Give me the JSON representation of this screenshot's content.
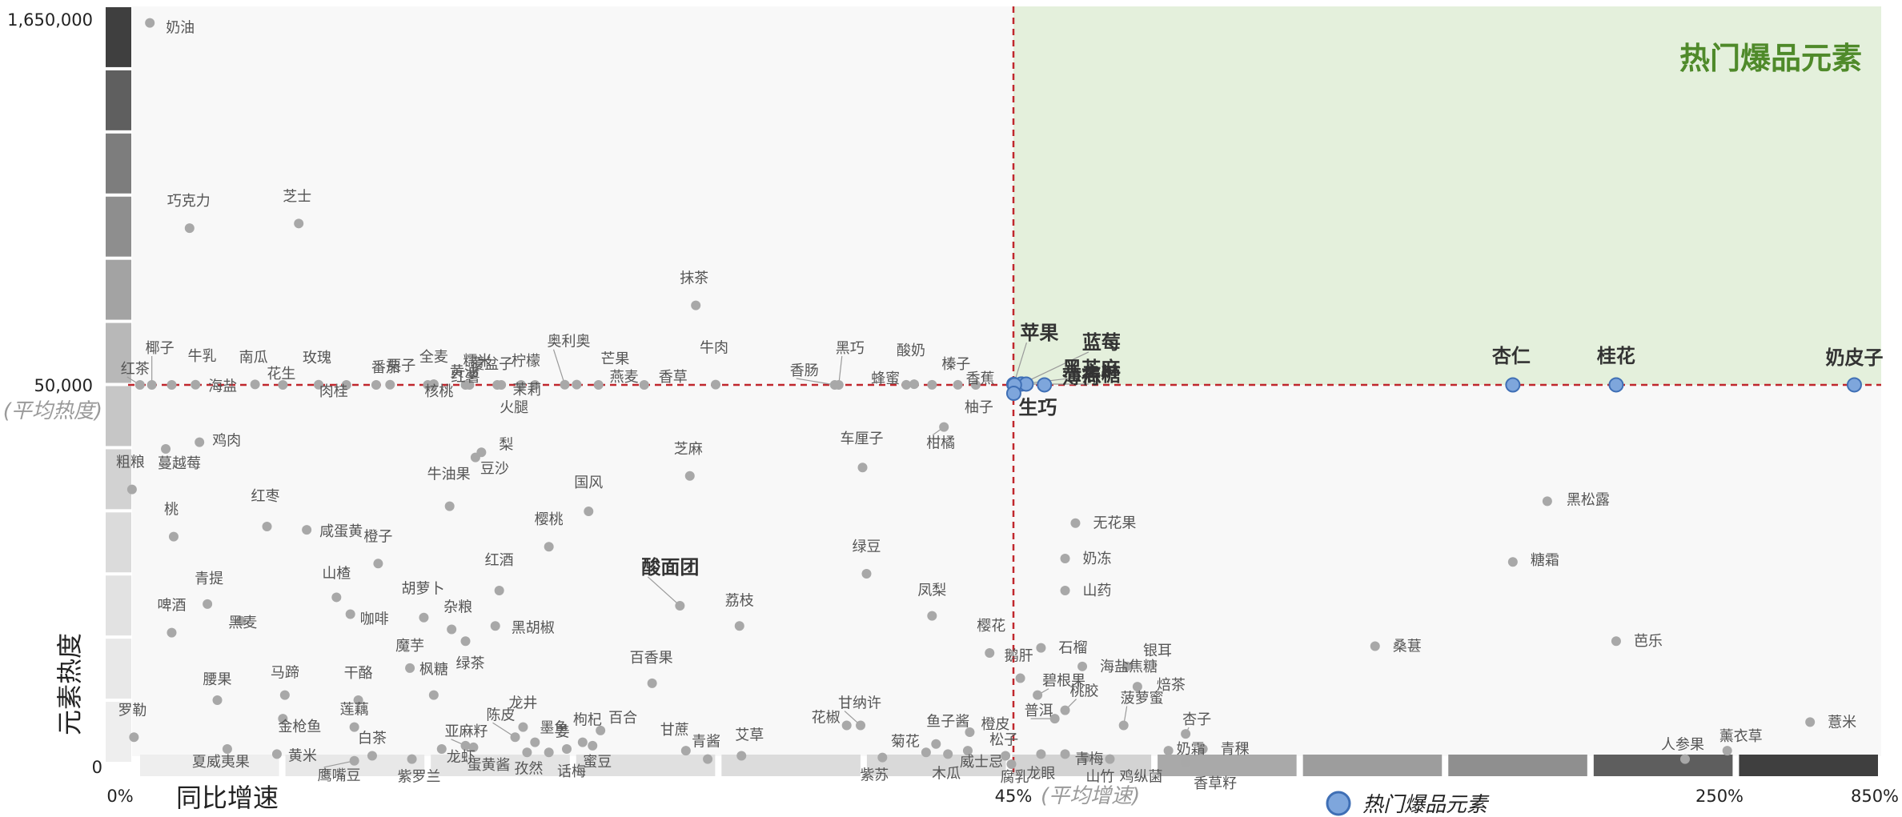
{
  "chart_data": {
    "type": "scatter",
    "title": "热门爆品元素",
    "xlabel": "同比增速",
    "ylabel": "元素热度",
    "x_ticks": [
      "0%",
      "45%",
      "250%",
      "850%"
    ],
    "x_avg_label": "(平均增速)",
    "y_ticks": [
      "1,650,000",
      "50,000",
      "0"
    ],
    "y_avg_label": "(平均热度)",
    "legend": "热门爆品元素",
    "legend_position": "bottom",
    "colors": {
      "hot_fill": "#7ea6dc",
      "hot_stroke": "#3f6fb5",
      "normal_dot": "#a8a8a8",
      "avg_line": "#c0272d",
      "hot_region": "#e4f0dc",
      "title": "#4f8a2a"
    },
    "points": [
      {
        "name": "奶油",
        "x": 1.5,
        "y": 1620000
      },
      {
        "name": "巧克力",
        "x": 3.5,
        "y": 730000
      },
      {
        "name": "芝士",
        "x": 9.0,
        "y": 750000
      },
      {
        "name": "抹茶",
        "x": 29.0,
        "y": 395000
      },
      {
        "name": "椰子",
        "x": 1.6,
        "y": 50000
      },
      {
        "name": "牛乳",
        "x": 2.6,
        "y": 50000
      },
      {
        "name": "红茶",
        "x": 1.0,
        "y": 50000
      },
      {
        "name": "海盐",
        "x": 3.8,
        "y": 51000
      },
      {
        "name": "南瓜",
        "x": 6.8,
        "y": 52000
      },
      {
        "name": "花生",
        "x": 8.2,
        "y": 50000
      },
      {
        "name": "玫瑰",
        "x": 10.0,
        "y": 50800
      },
      {
        "name": "肉桂",
        "x": 11.4,
        "y": 50000
      },
      {
        "name": "番茄",
        "x": 12.9,
        "y": 50000
      },
      {
        "name": "栗子",
        "x": 13.6,
        "y": 50800
      },
      {
        "name": "核桃",
        "x": 15.5,
        "y": 50000
      },
      {
        "name": "全麦",
        "x": 15.8,
        "y": 53000
      },
      {
        "name": "黄油",
        "x": 15.8,
        "y": 52500
      },
      {
        "name": "红薯",
        "x": 17.4,
        "y": 50000
      },
      {
        "name": "糯米",
        "x": 17.6,
        "y": 50100
      },
      {
        "name": "覆盆子",
        "x": 19.0,
        "y": 50000
      },
      {
        "name": "火腿",
        "x": 19.2,
        "y": 50000
      },
      {
        "name": "柠檬",
        "x": 20.2,
        "y": 50100
      },
      {
        "name": "茉莉",
        "x": 20.9,
        "y": 50000
      },
      {
        "name": "奥利奥",
        "x": 22.4,
        "y": 51000
      },
      {
        "name": "芒果",
        "x": 23.0,
        "y": 51200
      },
      {
        "name": "燕麦",
        "x": 24.1,
        "y": 50000
      },
      {
        "name": "香草",
        "x": 26.4,
        "y": 50000
      },
      {
        "name": "牛肉",
        "x": 30.0,
        "y": 51300
      },
      {
        "name": "香肠",
        "x": 36.0,
        "y": 50000
      },
      {
        "name": "黑巧",
        "x": 36.2,
        "y": 50000
      },
      {
        "name": "酸奶",
        "x": 40.0,
        "y": 53000
      },
      {
        "name": "蜂蜜",
        "x": 39.6,
        "y": 50600
      },
      {
        "name": "榛子",
        "x": 40.9,
        "y": 50600
      },
      {
        "name": "香蕉",
        "x": 42.2,
        "y": 50600
      },
      {
        "name": "柚子",
        "x": 43.1,
        "y": 50000
      },
      {
        "name": "柑橘",
        "x": 41.5,
        "y": 47500
      },
      {
        "name": "鸡肉",
        "x": 4.0,
        "y": 46600
      },
      {
        "name": "蔓越莓",
        "x": 2.3,
        "y": 46200
      },
      {
        "name": "粗粮",
        "x": 0.6,
        "y": 43800
      },
      {
        "name": "桃",
        "x": 2.7,
        "y": 41000
      },
      {
        "name": "红枣",
        "x": 7.4,
        "y": 41600
      },
      {
        "name": "咸蛋黄",
        "x": 9.4,
        "y": 41400
      },
      {
        "name": "梨",
        "x": 18.2,
        "y": 46000
      },
      {
        "name": "豆沙",
        "x": 17.9,
        "y": 45700
      },
      {
        "name": "牛油果",
        "x": 16.6,
        "y": 42800
      },
      {
        "name": "国风",
        "x": 23.6,
        "y": 42500
      },
      {
        "name": "樱桃",
        "x": 21.6,
        "y": 40400
      },
      {
        "name": "芝麻",
        "x": 28.7,
        "y": 44600
      },
      {
        "name": "车厘子",
        "x": 37.4,
        "y": 45100
      },
      {
        "name": "橙子",
        "x": 13.0,
        "y": 39400
      },
      {
        "name": "红酒",
        "x": 19.1,
        "y": 37800
      },
      {
        "name": "山楂",
        "x": 10.9,
        "y": 37400
      },
      {
        "name": "咖啡",
        "x": 11.6,
        "y": 36400
      },
      {
        "name": "青提",
        "x": 4.4,
        "y": 37000
      },
      {
        "name": "黑麦",
        "x": 6.1,
        "y": 36000
      },
      {
        "name": "啤酒",
        "x": 2.6,
        "y": 35300
      },
      {
        "name": "胡萝卜",
        "x": 15.3,
        "y": 36200
      },
      {
        "name": "杂粮",
        "x": 16.7,
        "y": 35500
      },
      {
        "name": "绿茶",
        "x": 17.4,
        "y": 34800
      },
      {
        "name": "黑胡椒",
        "x": 18.9,
        "y": 35700
      },
      {
        "name": "酸面团",
        "x": 28.2,
        "y": 36900
      },
      {
        "name": "荔枝",
        "x": 31.2,
        "y": 35700
      },
      {
        "name": "绿豆",
        "x": 37.6,
        "y": 38800
      },
      {
        "name": "凤梨",
        "x": 40.9,
        "y": 36300
      },
      {
        "name": "樱花",
        "x": 43.8,
        "y": 34100
      },
      {
        "name": "魔芋",
        "x": 14.6,
        "y": 33200
      },
      {
        "name": "枫糖",
        "x": 15.8,
        "y": 31600
      },
      {
        "name": "腰果",
        "x": 4.9,
        "y": 31300
      },
      {
        "name": "马蹄",
        "x": 8.3,
        "y": 31600
      },
      {
        "name": "干酪",
        "x": 12.0,
        "y": 31300
      },
      {
        "name": "金枪鱼",
        "x": 8.2,
        "y": 30200
      },
      {
        "name": "罗勒",
        "x": 0.7,
        "y": 29100
      },
      {
        "name": "夏威夷果",
        "x": 5.4,
        "y": 28400
      },
      {
        "name": "黄米",
        "x": 7.9,
        "y": 28100
      },
      {
        "name": "莲藕",
        "x": 11.8,
        "y": 29700
      },
      {
        "name": "鹰嘴豆",
        "x": 11.8,
        "y": 27700
      },
      {
        "name": "白茶",
        "x": 12.7,
        "y": 28000
      },
      {
        "name": "紫罗兰",
        "x": 14.7,
        "y": 27800
      },
      {
        "name": "龙虾",
        "x": 16.2,
        "y": 28400
      },
      {
        "name": "亚麻籽",
        "x": 17.4,
        "y": 28600
      },
      {
        "name": "蛋黄酱",
        "x": 17.8,
        "y": 28500
      },
      {
        "name": "陈皮",
        "x": 19.9,
        "y": 29100
      },
      {
        "name": "龙井",
        "x": 20.3,
        "y": 29700
      },
      {
        "name": "墨鱼",
        "x": 20.9,
        "y": 28800
      },
      {
        "name": "孜然",
        "x": 20.5,
        "y": 28200
      },
      {
        "name": "姜",
        "x": 21.6,
        "y": 28200
      },
      {
        "name": "话梅",
        "x": 22.5,
        "y": 28400
      },
      {
        "name": "枸杞",
        "x": 23.3,
        "y": 28800
      },
      {
        "name": "蜜豆",
        "x": 23.8,
        "y": 28600
      },
      {
        "name": "百合",
        "x": 24.2,
        "y": 29500
      },
      {
        "name": "百香果",
        "x": 26.8,
        "y": 32300
      },
      {
        "name": "甘蔗",
        "x": 28.5,
        "y": 28300
      },
      {
        "name": "青酱",
        "x": 29.6,
        "y": 27800
      },
      {
        "name": "艾草",
        "x": 31.3,
        "y": 28000
      },
      {
        "name": "花椒",
        "x": 36.6,
        "y": 29800
      },
      {
        "name": "甘纳许",
        "x": 37.3,
        "y": 29800
      },
      {
        "name": "紫苏",
        "x": 38.4,
        "y": 27900
      },
      {
        "name": "鱼子酱",
        "x": 41.1,
        "y": 28700
      },
      {
        "name": "菊花",
        "x": 40.6,
        "y": 28200
      },
      {
        "name": "木瓜",
        "x": 41.7,
        "y": 28100
      },
      {
        "name": "橙皮",
        "x": 42.8,
        "y": 29400
      },
      {
        "name": "威士忌",
        "x": 42.7,
        "y": 28300
      },
      {
        "name": "松子",
        "x": 44.6,
        "y": 28000
      },
      {
        "name": "腐乳",
        "x": 44.9,
        "y": 27500
      },
      {
        "name": "苹果",
        "x": 45.1,
        "y": 52800
      },
      {
        "name": "蓝莓",
        "x": 47.3,
        "y": 53800
      },
      {
        "name": "焦糖",
        "x": 48.7,
        "y": 53600
      },
      {
        "name": "黑芝麻",
        "x": 45.3,
        "y": 50200
      },
      {
        "name": "生巧",
        "x": 45.1,
        "y": 49500
      },
      {
        "name": "薄荷",
        "x": 54.0,
        "y": 50200
      },
      {
        "name": "杏仁",
        "x": 190.0,
        "y": 50000
      },
      {
        "name": "桂花",
        "x": 220.0,
        "y": 50200
      },
      {
        "name": "奶皮子",
        "x": 771.0,
        "y": 50200
      },
      {
        "name": "黑松露",
        "x": 200.0,
        "y": 43100
      },
      {
        "name": "糖霜",
        "x": 190.0,
        "y": 39500
      },
      {
        "name": "无花果",
        "x": 63.0,
        "y": 41800
      },
      {
        "name": "奶冻",
        "x": 60.0,
        "y": 39700
      },
      {
        "name": "山药",
        "x": 60.0,
        "y": 37800
      },
      {
        "name": "石榴",
        "x": 53.0,
        "y": 34400
      },
      {
        "name": "海盐焦糖",
        "x": 65.0,
        "y": 33300
      },
      {
        "name": "桑葚",
        "x": 150.0,
        "y": 34500
      },
      {
        "name": "芭乐",
        "x": 220.0,
        "y": 34800
      },
      {
        "name": "鹅肝",
        "x": 47.0,
        "y": 32600
      },
      {
        "name": "银耳",
        "x": 78.0,
        "y": 33300
      },
      {
        "name": "焙茶",
        "x": 81.0,
        "y": 32100
      },
      {
        "name": "碧根果",
        "x": 52.0,
        "y": 31600
      },
      {
        "name": "桃胶",
        "x": 60.0,
        "y": 30700
      },
      {
        "name": "菠萝蜜",
        "x": 77.0,
        "y": 29800
      },
      {
        "name": "普洱",
        "x": 57.0,
        "y": 30200
      },
      {
        "name": "杏子",
        "x": 95.0,
        "y": 29300
      },
      {
        "name": "奶霜",
        "x": 90.0,
        "y": 28300
      },
      {
        "name": "青稞",
        "x": 100.0,
        "y": 28400
      },
      {
        "name": "青梅",
        "x": 60.0,
        "y": 28100
      },
      {
        "name": "鸡纵菌",
        "x": 73.0,
        "y": 27800
      },
      {
        "name": "龙眼",
        "x": 53.0,
        "y": 28100
      },
      {
        "name": "山竹",
        "x": 66.0,
        "y": 27900
      },
      {
        "name": "香草籽",
        "x": 95.0,
        "y": 27600
      },
      {
        "name": "人参果",
        "x": 240.0,
        "y": 27800
      },
      {
        "name": "薰衣草",
        "x": 280.0,
        "y": 28300
      },
      {
        "name": "薏米",
        "x": 600.0,
        "y": 30000
      }
    ],
    "hot_points": [
      "苹果",
      "蓝莓",
      "焦糖",
      "黑芝麻",
      "生巧",
      "薄荷",
      "杏仁",
      "桂花",
      "奶皮子"
    ],
    "x_avg": 45,
    "y_avg": 50000,
    "x_scale": "piecewise",
    "y_scale": "piecewise",
    "grid": false
  }
}
